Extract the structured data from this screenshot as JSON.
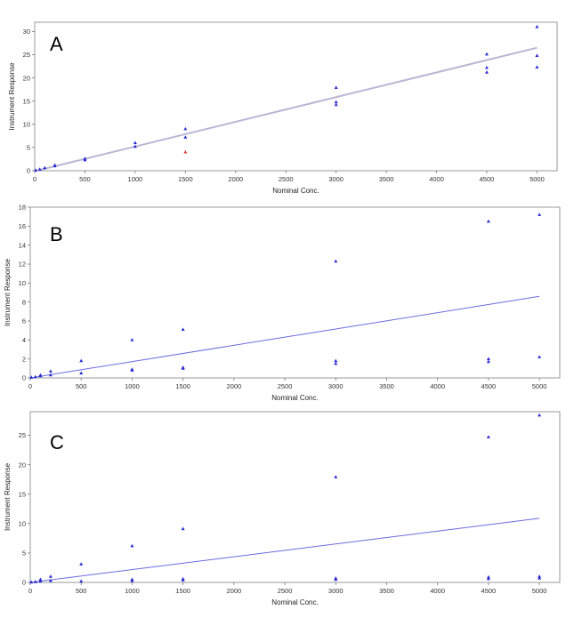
{
  "chart_data": [
    {
      "type": "scatter",
      "panel_label": "A",
      "xlabel": "Nominal Conc.",
      "ylabel": "Instrument Response",
      "xlim": [
        0,
        5200
      ],
      "ylim": [
        0,
        32
      ],
      "xticks": [
        0,
        500,
        1000,
        1500,
        2000,
        2500,
        3000,
        3500,
        4000,
        4500,
        5000
      ],
      "yticks": [
        0,
        5,
        10,
        15,
        20,
        25,
        30
      ],
      "grid": false,
      "series": [
        {
          "color": "#2b2bd6",
          "marker": "triangle",
          "points": [
            [
              10,
              0.1
            ],
            [
              50,
              0.3
            ],
            [
              100,
              0.6
            ],
            [
              200,
              1.0
            ],
            [
              200,
              1.2
            ],
            [
              500,
              2.3
            ],
            [
              500,
              2.6
            ],
            [
              1000,
              5.2
            ],
            [
              1000,
              6.0
            ],
            [
              1500,
              7.2
            ],
            [
              1500,
              9.0
            ],
            [
              3000,
              14.2
            ],
            [
              3000,
              14.8
            ],
            [
              3000,
              17.9
            ],
            [
              4500,
              21.2
            ],
            [
              4500,
              22.2
            ],
            [
              4500,
              25.1
            ],
            [
              5000,
              22.3
            ],
            [
              5000,
              24.8
            ],
            [
              5000,
              31.0
            ]
          ]
        },
        {
          "color": "#e03a3a",
          "marker": "triangle",
          "points": [
            [
              1500,
              4.0
            ]
          ]
        }
      ],
      "fit_line": {
        "color": "#b9b6d4",
        "x": [
          0,
          5000
        ],
        "y": [
          -0.1,
          26.5
        ]
      }
    },
    {
      "type": "scatter",
      "panel_label": "B",
      "xlabel": "Nominal Conc.",
      "ylabel": "Instrument Response",
      "xlim": [
        0,
        5200
      ],
      "ylim": [
        0,
        18
      ],
      "xticks": [
        0,
        500,
        1000,
        1500,
        2000,
        2500,
        3000,
        3500,
        4000,
        4500,
        5000
      ],
      "yticks": [
        0,
        2,
        4,
        6,
        8,
        10,
        12,
        14,
        16,
        18
      ],
      "grid": false,
      "series": [
        {
          "color": "#2b2bd6",
          "marker": "triangle",
          "points": [
            [
              10,
              0.05
            ],
            [
              50,
              0.1
            ],
            [
              100,
              0.2
            ],
            [
              100,
              0.3
            ],
            [
              200,
              0.3
            ],
            [
              200,
              0.7
            ],
            [
              500,
              0.5
            ],
            [
              500,
              1.8
            ],
            [
              1000,
              0.8
            ],
            [
              1000,
              0.9
            ],
            [
              1000,
              4.0
            ],
            [
              1500,
              1.0
            ],
            [
              1500,
              1.1
            ],
            [
              1500,
              5.1
            ],
            [
              3000,
              1.5
            ],
            [
              3000,
              1.8
            ],
            [
              3000,
              12.3
            ],
            [
              4500,
              1.7
            ],
            [
              4500,
              2.0
            ],
            [
              4500,
              16.5
            ],
            [
              5000,
              2.2
            ],
            [
              5000,
              17.2
            ]
          ]
        }
      ],
      "fit_line": {
        "color": "#6b6be0",
        "x": [
          0,
          5000
        ],
        "y": [
          0.0,
          8.6
        ]
      }
    },
    {
      "type": "scatter",
      "panel_label": "C",
      "xlabel": "Nominal Conc.",
      "ylabel": "Instrument Response",
      "xlim": [
        0,
        5200
      ],
      "ylim": [
        0,
        29
      ],
      "xticks": [
        0,
        500,
        1000,
        1500,
        2000,
        2500,
        3000,
        3500,
        4000,
        4500,
        5000
      ],
      "yticks": [
        0,
        5,
        10,
        15,
        20,
        25
      ],
      "grid": false,
      "series": [
        {
          "color": "#2b2bd6",
          "marker": "triangle",
          "points": [
            [
              10,
              0.05
            ],
            [
              50,
              0.1
            ],
            [
              100,
              0.2
            ],
            [
              100,
              0.5
            ],
            [
              200,
              0.3
            ],
            [
              200,
              1.0
            ],
            [
              500,
              0.2
            ],
            [
              500,
              3.1
            ],
            [
              1000,
              0.3
            ],
            [
              1000,
              0.5
            ],
            [
              1000,
              6.2
            ],
            [
              1500,
              0.4
            ],
            [
              1500,
              0.6
            ],
            [
              1500,
              9.1
            ],
            [
              3000,
              0.5
            ],
            [
              3000,
              0.7
            ],
            [
              3000,
              17.9
            ],
            [
              4500,
              0.6
            ],
            [
              4500,
              0.9
            ],
            [
              4500,
              24.7
            ],
            [
              5000,
              0.7
            ],
            [
              5000,
              1.0
            ],
            [
              5000,
              28.4
            ]
          ]
        }
      ],
      "fit_line": {
        "color": "#6b6be0",
        "x": [
          0,
          5000
        ],
        "y": [
          0.0,
          10.9
        ]
      }
    }
  ]
}
